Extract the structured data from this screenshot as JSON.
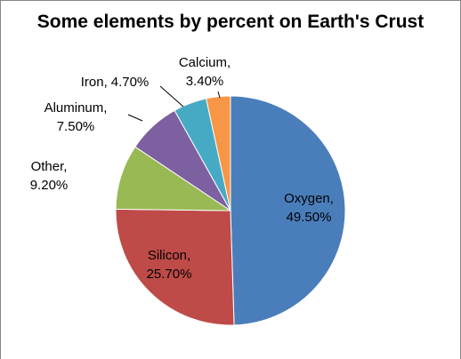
{
  "chart_data": {
    "type": "pie",
    "title": "Some elements by percent on Earth's Crust",
    "categories": [
      "Oxygen,",
      "Silicon,",
      "Other,",
      "Aluminum,",
      "Iron,",
      "Calcium,"
    ],
    "values": [
      49.5,
      25.7,
      9.2,
      7.5,
      4.7,
      3.4
    ],
    "value_labels": [
      "49.50%",
      "25.70%",
      "9.20%",
      "7.50%",
      "4.70%",
      "3.40%"
    ],
    "colors": [
      "#4a7ebb",
      "#be4b48",
      "#98b954",
      "#7d60a0",
      "#46aac5",
      "#f79646"
    ]
  }
}
